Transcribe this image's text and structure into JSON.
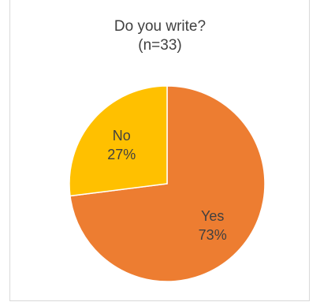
{
  "chart_data": {
    "type": "pie",
    "title": "Do you write?",
    "subtitle": "(n=33)",
    "categories": [
      "Yes",
      "No"
    ],
    "values": [
      73,
      27
    ],
    "labels": [
      "73%",
      "27%"
    ],
    "colors": [
      "#ED7D31",
      "#FFC000"
    ],
    "legend": "none"
  }
}
